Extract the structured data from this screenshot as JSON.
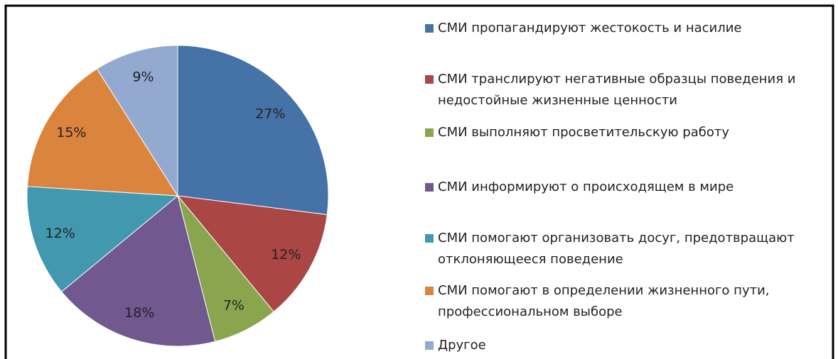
{
  "chart_data": {
    "type": "pie",
    "categories": [
      "СМИ пропагандируют жестокость и насилие",
      "СМИ транслируют негативные образцы поведения и недостойные жизненные ценности",
      "СМИ выполняют просветительскую работу",
      "СМИ информируют о происходящем в мире",
      "СМИ помогают организовать досуг, предотвращают отклоняющееся поведение",
      "СМИ помогают в определении жизненного пути, профессиональном выборе",
      "Другое"
    ],
    "values": [
      27,
      12,
      7,
      18,
      12,
      15,
      9
    ],
    "value_labels": [
      "27%",
      "12%",
      "7%",
      "18%",
      "12%",
      "15%",
      "9%"
    ],
    "colors": [
      "#4572a7",
      "#aa4643",
      "#89a54e",
      "#71588f",
      "#4198af",
      "#db843d",
      "#93a9cf"
    ],
    "legend": "right"
  }
}
